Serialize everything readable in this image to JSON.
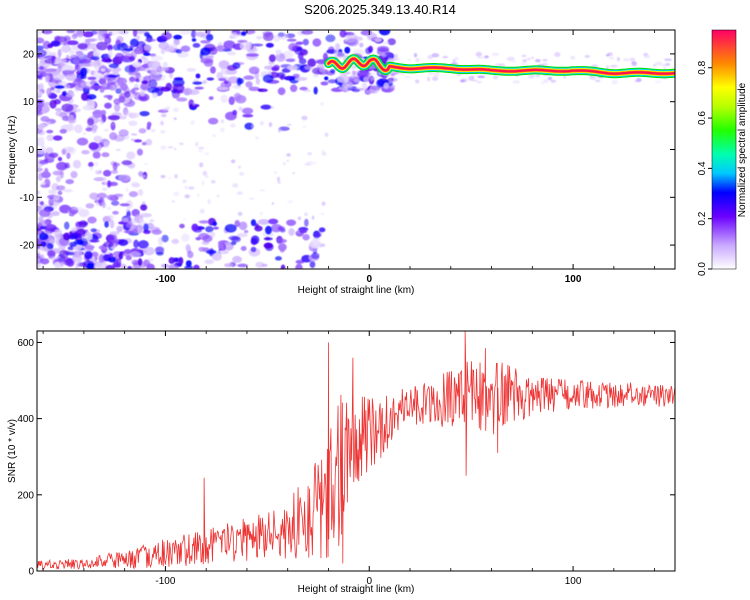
{
  "title": "S206.2025.349.13.40.R14",
  "chart_data": [
    {
      "type": "heatmap",
      "id": "spectrogram",
      "xlabel": "Height of straight line (km)",
      "ylabel": "Frequency (Hz)",
      "xlim": [
        -163,
        150
      ],
      "ylim": [
        -25,
        25
      ],
      "x_ticks": [
        {
          "value": -100,
          "label": "-100"
        },
        {
          "value": 0,
          "label": "0"
        },
        {
          "value": 100,
          "label": "100"
        }
      ],
      "y_ticks": [
        {
          "value": 20,
          "label": "20"
        },
        {
          "value": 10,
          "label": "10"
        },
        {
          "value": 0,
          "label": "0"
        },
        {
          "value": -10,
          "label": "-10"
        },
        {
          "value": -20,
          "label": "-20"
        }
      ],
      "ridge": {
        "x": [
          -20,
          -10,
          0,
          5,
          20,
          40,
          60,
          80,
          100,
          120,
          150
        ],
        "freq": [
          17.5,
          18,
          18.5,
          17.5,
          17,
          17,
          16.5,
          16.5,
          16.5,
          16,
          16
        ]
      },
      "colorbar": {
        "label": "Normalized spectral amplitude",
        "range": [
          0,
          0.95
        ],
        "ticks": [
          {
            "value": 0.0,
            "label": "0.0"
          },
          {
            "value": 0.2,
            "label": "0.2"
          },
          {
            "value": 0.4,
            "label": "0.4"
          },
          {
            "value": 0.6,
            "label": "0.6"
          },
          {
            "value": 0.8,
            "label": "0.8"
          }
        ]
      }
    },
    {
      "type": "line",
      "id": "snr",
      "xlabel": "Height of straight line (km)",
      "ylabel": "SNR (10 * v/v)",
      "xlim": [
        -163,
        150
      ],
      "ylim": [
        0,
        630
      ],
      "color": "#ee3333",
      "x_ticks": [
        {
          "value": -100,
          "label": "-100"
        },
        {
          "value": 0,
          "label": "0"
        },
        {
          "value": 100,
          "label": "100"
        }
      ],
      "y_ticks": [
        {
          "value": 0,
          "label": "0"
        },
        {
          "value": 200,
          "label": "200"
        },
        {
          "value": 400,
          "label": "400"
        },
        {
          "value": 600,
          "label": "600"
        }
      ],
      "envelope": {
        "x": [
          -163,
          -140,
          -120,
          -100,
          -80,
          -60,
          -40,
          -30,
          -20,
          -15,
          -10,
          -5,
          0,
          5,
          10,
          15,
          20,
          25,
          30,
          40,
          50,
          60,
          70,
          80,
          100,
          120,
          150
        ],
        "base": [
          15,
          20,
          30,
          45,
          60,
          80,
          110,
          140,
          190,
          260,
          330,
          350,
          360,
          370,
          400,
          420,
          430,
          440,
          445,
          450,
          455,
          460,
          460,
          460,
          462,
          462,
          460
        ],
        "amp": [
          12,
          15,
          25,
          40,
          50,
          60,
          80,
          110,
          170,
          220,
          150,
          120,
          100,
          80,
          70,
          60,
          55,
          55,
          60,
          80,
          110,
          110,
          80,
          50,
          40,
          35,
          30
        ]
      },
      "spikes": [
        {
          "x": -81,
          "y": 245
        },
        {
          "x": -20,
          "y": 600
        },
        {
          "x": -8,
          "y": 560
        },
        {
          "x": 47,
          "y": 630
        },
        {
          "x": 47.5,
          "y": 250
        },
        {
          "x": 63,
          "y": 310
        },
        {
          "x": 57,
          "y": 585
        },
        {
          "x": -13,
          "y": 20
        }
      ]
    }
  ]
}
